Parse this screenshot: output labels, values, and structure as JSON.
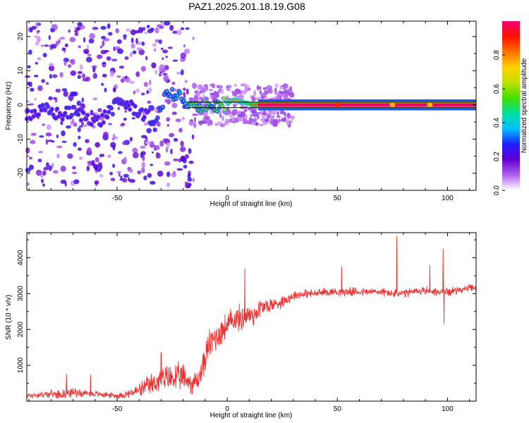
{
  "title": "PAZ1.2025.201.18.19.G08",
  "chart_data": [
    {
      "type": "heatmap",
      "panel": "spectrogram",
      "xlabel": "Height of straight line (km)",
      "ylabel": "Frequency (Hz)",
      "xlim": [
        -91,
        113
      ],
      "ylim": [
        -25,
        24.5
      ],
      "x_ticks": [
        -50,
        0,
        50,
        100
      ],
      "x_tick_labels": [
        "-50",
        "0",
        "50",
        "100"
      ],
      "y_ticks": [
        -20,
        -10,
        0,
        10,
        20
      ],
      "y_tick_labels": [
        "-20",
        "-10",
        "0",
        "10",
        "20"
      ],
      "colorbar": {
        "label": "Normalized spectral amplitude",
        "ticks": [
          0.0,
          0.2,
          0.4,
          0.6,
          0.8
        ],
        "tick_labels": [
          "0.0",
          "0.2",
          "0.4",
          "0.6",
          "0.8"
        ],
        "range": [
          0,
          1
        ],
        "colormap": [
          "#ffffff",
          "#b060f0",
          "#6000d0",
          "#2020ff",
          "#00c0ff",
          "#00e0a0",
          "#40e000",
          "#c0e000",
          "#ffd000",
          "#ff7000",
          "#ff1000",
          "#f00070"
        ]
      },
      "signal_line_freq_hz": [
        -0.8,
        0.8
      ],
      "ridge": {
        "height_km": [
          -88,
          -82,
          -76,
          -70,
          -64,
          -58,
          -52,
          -48,
          -44,
          -40,
          -36,
          -33,
          -30,
          -27,
          -24,
          -21,
          -19,
          -16,
          -13,
          -10,
          -7,
          -4,
          0,
          3,
          6,
          9,
          12,
          16,
          20,
          30,
          40,
          60,
          75,
          90,
          95,
          98,
          113
        ],
        "freq_hz": [
          -2.5,
          -1.5,
          -3.0,
          -2.0,
          -3.5,
          -5.0,
          -1.0,
          1.0,
          -0.5,
          -2.0,
          -3.5,
          -6.0,
          -1.0,
          4.5,
          2.0,
          3.0,
          -1.0,
          0.0,
          -1.5,
          0.5,
          -0.5,
          -0.5,
          0.5,
          1.5,
          1.0,
          0.5,
          0.0,
          0.0,
          0.0,
          0.0,
          0.0,
          0.0,
          0.0,
          0.0,
          0.5,
          0.0,
          0.0
        ],
        "amplitude": [
          0.25,
          0.3,
          0.25,
          0.3,
          0.25,
          0.25,
          0.3,
          0.3,
          0.25,
          0.3,
          0.25,
          0.3,
          0.35,
          0.4,
          0.35,
          0.45,
          0.5,
          0.6,
          0.55,
          0.6,
          0.5,
          0.55,
          0.7,
          0.8,
          0.75,
          0.8,
          0.9,
          0.95,
          0.97,
          1.0,
          1.0,
          1.0,
          0.95,
          0.95,
          0.7,
          0.7,
          1.0
        ]
      }
    },
    {
      "type": "line",
      "panel": "snr",
      "xlabel": "Height of straight line (km)",
      "ylabel": "SNR (10 * v/v)",
      "xlim": [
        -91,
        113
      ],
      "ylim": [
        0,
        4700
      ],
      "x_ticks": [
        -50,
        0,
        50,
        100
      ],
      "x_tick_labels": [
        "-50",
        "0",
        "50",
        "100"
      ],
      "y_ticks": [
        1000,
        2000,
        3000,
        4000
      ],
      "y_tick_labels": [
        "1000",
        "2000",
        "3000",
        "4000"
      ],
      "series": [
        {
          "color": "#ee3030",
          "x": [
            -91,
            -85,
            -80,
            -75,
            -70,
            -65,
            -60,
            -55,
            -50,
            -45,
            -40,
            -35,
            -30,
            -25,
            -20,
            -16,
            -13,
            -10,
            -8,
            -5,
            -2,
            0,
            3,
            6,
            9,
            12,
            15,
            18,
            21,
            24,
            27,
            30,
            35,
            40,
            45,
            50,
            55,
            60,
            65,
            70,
            75,
            80,
            85,
            90,
            95,
            100,
            105,
            110,
            113
          ],
          "y": [
            150,
            180,
            200,
            200,
            250,
            220,
            200,
            180,
            150,
            200,
            300,
            450,
            600,
            650,
            650,
            500,
            600,
            1200,
            1600,
            1800,
            2000,
            2100,
            2300,
            2300,
            2400,
            2400,
            2600,
            2650,
            2700,
            2750,
            2850,
            2950,
            3000,
            3000,
            3050,
            3050,
            3050,
            3050,
            3050,
            3050,
            3000,
            3000,
            3050,
            3100,
            3050,
            3050,
            3100,
            3150,
            3150
          ],
          "noise": [
            80,
            90,
            100,
            120,
            130,
            110,
            90,
            80,
            80,
            120,
            200,
            300,
            350,
            400,
            400,
            300,
            350,
            400,
            450,
            450,
            400,
            380,
            380,
            380,
            350,
            350,
            300,
            250,
            200,
            180,
            160,
            140,
            120,
            120,
            120,
            120,
            120,
            120,
            120,
            120,
            120,
            120,
            120,
            120,
            120,
            120,
            100,
            100,
            100
          ],
          "spikes": [
            [
              -73,
              760
            ],
            [
              -62,
              740
            ],
            [
              -30,
              1350
            ],
            [
              8,
              3700
            ],
            [
              52,
              3750
            ],
            [
              77,
              4600
            ],
            [
              92,
              3800
            ],
            [
              98,
              4250
            ],
            [
              98.5,
              2150
            ]
          ]
        }
      ]
    }
  ]
}
